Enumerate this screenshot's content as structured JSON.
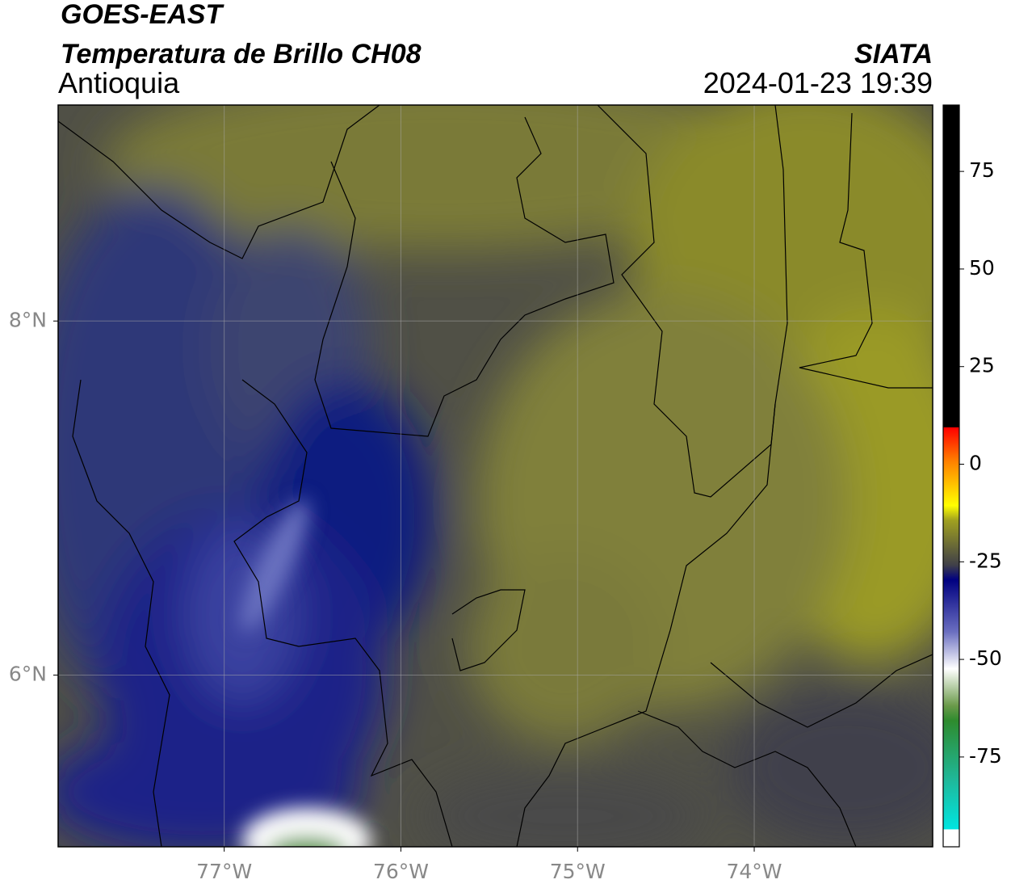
{
  "header": {
    "satellite": "GOES-EAST",
    "product": "Temperatura de Brillo CH08",
    "region": "Antioquia",
    "source": "SIATA",
    "datetime": "2024-01-23 19:39"
  },
  "map": {
    "xlim": [
      -77.94,
      -72.99
    ],
    "ylim": [
      5.03,
      9.22
    ],
    "xticks": [
      {
        "value": -77,
        "label": "77°W"
      },
      {
        "value": -76,
        "label": "76°W"
      },
      {
        "value": -75,
        "label": "75°W"
      },
      {
        "value": -74,
        "label": "74°W"
      }
    ],
    "yticks": [
      {
        "value": 8,
        "label": "8°N"
      },
      {
        "value": 6,
        "label": "6°N"
      }
    ],
    "grid": true
  },
  "colorbar": {
    "lim": [
      -98,
      92
    ],
    "ticks": [
      75,
      50,
      25,
      0,
      -25,
      -50,
      -75
    ]
  }
}
